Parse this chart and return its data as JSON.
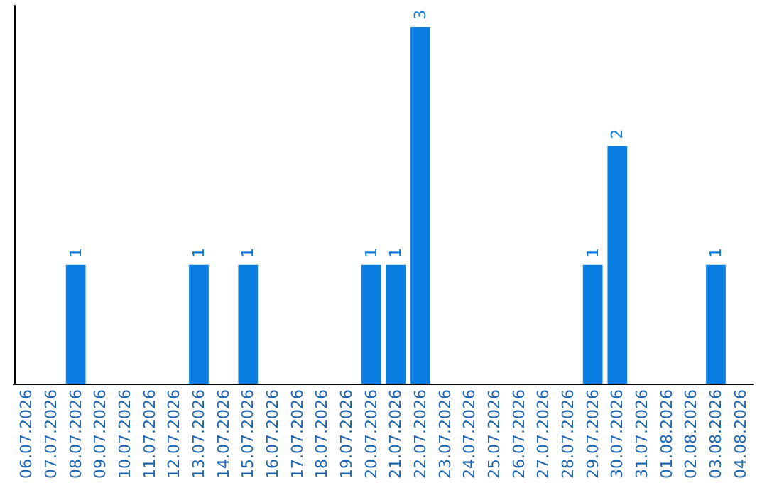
{
  "chart_data": {
    "type": "bar",
    "categories": [
      "06.07.2026",
      "07.07.2026",
      "08.07.2026",
      "09.07.2026",
      "10.07.2026",
      "11.07.2026",
      "12.07.2026",
      "13.07.2026",
      "14.07.2026",
      "15.07.2026",
      "16.07.2026",
      "17.07.2026",
      "18.07.2026",
      "19.07.2026",
      "20.07.2026",
      "21.07.2026",
      "22.07.2026",
      "23.07.2026",
      "24.07.2026",
      "25.07.2026",
      "26.07.2026",
      "27.07.2026",
      "28.07.2026",
      "29.07.2026",
      "30.07.2026",
      "31.07.2026",
      "01.08.2026",
      "02.08.2026",
      "03.08.2026",
      "04.08.2026"
    ],
    "values": [
      0,
      0,
      1,
      0,
      0,
      0,
      0,
      1,
      0,
      1,
      0,
      0,
      0,
      0,
      1,
      1,
      3,
      0,
      0,
      0,
      0,
      0,
      0,
      1,
      2,
      0,
      0,
      0,
      1,
      0
    ],
    "color": "#0a7ee0",
    "value_labels": [
      null,
      null,
      "1",
      null,
      null,
      null,
      null,
      "1",
      null,
      "1",
      null,
      null,
      null,
      null,
      "1",
      "1",
      "3",
      null,
      null,
      null,
      null,
      null,
      null,
      "1",
      "2",
      null,
      null,
      null,
      "1",
      null
    ],
    "tick_labels": "x"
  }
}
